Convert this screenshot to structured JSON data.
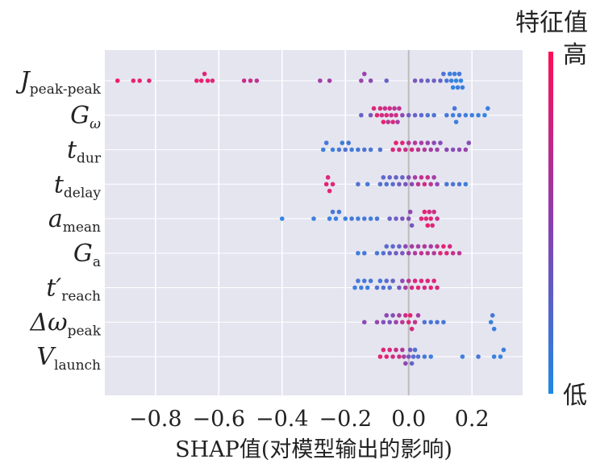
{
  "chart_data": {
    "type": "scatter",
    "subtype": "beeswarm",
    "xlabel": "SHAP值(对模型输出的影响)",
    "x_ticks": [
      -0.8,
      -0.6,
      -0.4,
      -0.2,
      0.0,
      0.2
    ],
    "x_tick_labels": [
      "−0.8",
      "−0.6",
      "−0.4",
      "−0.2",
      "0.0",
      "0.2"
    ],
    "xlim": [
      -0.96,
      0.36
    ],
    "grid": true,
    "colorbar": {
      "title": "特征值",
      "high_label": "高",
      "low_label": "低",
      "high_color": "#ff0d57",
      "low_color": "#1e88e5"
    },
    "features": [
      {
        "label": {
          "base": "J",
          "sub": "peak-peak"
        },
        "points": [
          {
            "x": -0.92,
            "v": 0.95
          },
          {
            "x": -0.87,
            "v": 0.9
          },
          {
            "x": -0.85,
            "v": 0.9
          },
          {
            "x": -0.82,
            "v": 0.85
          },
          {
            "x": -0.67,
            "v": 0.9
          },
          {
            "x": -0.655,
            "v": 0.9
          },
          {
            "x": -0.645,
            "v": 0.85
          },
          {
            "x": -0.635,
            "v": 0.9
          },
          {
            "x": -0.62,
            "v": 0.85
          },
          {
            "x": -0.52,
            "v": 0.75
          },
          {
            "x": -0.5,
            "v": 0.75
          },
          {
            "x": -0.48,
            "v": 0.7
          },
          {
            "x": -0.28,
            "v": 0.6
          },
          {
            "x": -0.25,
            "v": 0.6
          },
          {
            "x": -0.15,
            "v": 0.55
          },
          {
            "x": -0.14,
            "v": 0.55
          },
          {
            "x": -0.12,
            "v": 0.5
          },
          {
            "x": -0.07,
            "v": 0.3
          },
          {
            "x": 0.02,
            "v": 0.4
          },
          {
            "x": 0.04,
            "v": 0.35
          },
          {
            "x": 0.06,
            "v": 0.3
          },
          {
            "x": 0.08,
            "v": 0.35
          },
          {
            "x": 0.1,
            "v": 0.3
          },
          {
            "x": 0.11,
            "v": 0.2
          },
          {
            "x": 0.12,
            "v": 0.15
          },
          {
            "x": 0.13,
            "v": 0.1
          },
          {
            "x": 0.135,
            "v": 0.1
          },
          {
            "x": 0.14,
            "v": 0.05
          },
          {
            "x": 0.145,
            "v": 0.1
          },
          {
            "x": 0.15,
            "v": 0.05
          },
          {
            "x": 0.155,
            "v": 0.1
          },
          {
            "x": 0.16,
            "v": 0.15
          },
          {
            "x": 0.165,
            "v": 0.05
          },
          {
            "x": 0.17,
            "v": 0.1
          }
        ]
      },
      {
        "label": {
          "base": "G",
          "sub": "ω"
        },
        "points": [
          {
            "x": -0.15,
            "v": 0.3
          },
          {
            "x": -0.12,
            "v": 0.4
          },
          {
            "x": -0.11,
            "v": 0.85
          },
          {
            "x": -0.1,
            "v": 0.9
          },
          {
            "x": -0.09,
            "v": 0.85
          },
          {
            "x": -0.085,
            "v": 0.8
          },
          {
            "x": -0.08,
            "v": 0.9
          },
          {
            "x": -0.075,
            "v": 0.75
          },
          {
            "x": -0.07,
            "v": 0.85
          },
          {
            "x": -0.065,
            "v": 0.7
          },
          {
            "x": -0.06,
            "v": 0.8
          },
          {
            "x": -0.055,
            "v": 0.75
          },
          {
            "x": -0.05,
            "v": 0.85
          },
          {
            "x": -0.045,
            "v": 0.7
          },
          {
            "x": -0.04,
            "v": 0.8
          },
          {
            "x": -0.035,
            "v": 0.6
          },
          {
            "x": -0.03,
            "v": 0.7
          },
          {
            "x": -0.02,
            "v": 0.5
          },
          {
            "x": 0.0,
            "v": 0.35
          },
          {
            "x": 0.02,
            "v": 0.3
          },
          {
            "x": 0.04,
            "v": 0.25
          },
          {
            "x": 0.06,
            "v": 0.2
          },
          {
            "x": 0.08,
            "v": 0.2
          },
          {
            "x": 0.12,
            "v": 0.15
          },
          {
            "x": 0.14,
            "v": 0.1
          },
          {
            "x": 0.145,
            "v": 0.15
          },
          {
            "x": 0.15,
            "v": 0.1
          },
          {
            "x": 0.16,
            "v": 0.15
          },
          {
            "x": 0.18,
            "v": 0.1
          },
          {
            "x": 0.2,
            "v": 0.1
          },
          {
            "x": 0.22,
            "v": 0.1
          },
          {
            "x": 0.24,
            "v": 0.05
          },
          {
            "x": 0.25,
            "v": 0.1
          }
        ]
      },
      {
        "label": {
          "base": "t",
          "sub": "dur"
        },
        "points": [
          {
            "x": -0.27,
            "v": 0.1
          },
          {
            "x": -0.26,
            "v": 0.15
          },
          {
            "x": -0.24,
            "v": 0.1
          },
          {
            "x": -0.22,
            "v": 0.15
          },
          {
            "x": -0.21,
            "v": 0.1
          },
          {
            "x": -0.2,
            "v": 0.2
          },
          {
            "x": -0.19,
            "v": 0.15
          },
          {
            "x": -0.18,
            "v": 0.1
          },
          {
            "x": -0.16,
            "v": 0.15
          },
          {
            "x": -0.14,
            "v": 0.2
          },
          {
            "x": -0.12,
            "v": 0.15
          },
          {
            "x": -0.09,
            "v": 0.2
          },
          {
            "x": -0.05,
            "v": 0.85
          },
          {
            "x": -0.04,
            "v": 0.9
          },
          {
            "x": -0.03,
            "v": 0.8
          },
          {
            "x": -0.02,
            "v": 0.85
          },
          {
            "x": -0.01,
            "v": 0.75
          },
          {
            "x": 0.0,
            "v": 0.7
          },
          {
            "x": 0.01,
            "v": 0.8
          },
          {
            "x": 0.02,
            "v": 0.65
          },
          {
            "x": 0.03,
            "v": 0.7
          },
          {
            "x": 0.04,
            "v": 0.6
          },
          {
            "x": 0.05,
            "v": 0.65
          },
          {
            "x": 0.06,
            "v": 0.55
          },
          {
            "x": 0.07,
            "v": 0.6
          },
          {
            "x": 0.08,
            "v": 0.5
          },
          {
            "x": 0.09,
            "v": 0.55
          },
          {
            "x": 0.1,
            "v": 0.45
          },
          {
            "x": 0.12,
            "v": 0.5
          },
          {
            "x": 0.14,
            "v": 0.45
          },
          {
            "x": 0.16,
            "v": 0.5
          },
          {
            "x": 0.18,
            "v": 0.55
          },
          {
            "x": 0.19,
            "v": 0.45
          }
        ]
      },
      {
        "label": {
          "base": "t",
          "sub": "delay"
        },
        "points": [
          {
            "x": -0.26,
            "v": 0.9
          },
          {
            "x": -0.255,
            "v": 0.85
          },
          {
            "x": -0.25,
            "v": 0.9
          },
          {
            "x": -0.24,
            "v": 0.85
          },
          {
            "x": -0.16,
            "v": 0.2
          },
          {
            "x": -0.13,
            "v": 0.15
          },
          {
            "x": -0.09,
            "v": 0.2
          },
          {
            "x": -0.08,
            "v": 0.25
          },
          {
            "x": -0.07,
            "v": 0.2
          },
          {
            "x": -0.06,
            "v": 0.3
          },
          {
            "x": -0.05,
            "v": 0.25
          },
          {
            "x": -0.04,
            "v": 0.3
          },
          {
            "x": -0.03,
            "v": 0.35
          },
          {
            "x": -0.02,
            "v": 0.3
          },
          {
            "x": -0.01,
            "v": 0.4
          },
          {
            "x": 0.0,
            "v": 0.45
          },
          {
            "x": 0.01,
            "v": 0.5
          },
          {
            "x": 0.02,
            "v": 0.6
          },
          {
            "x": 0.03,
            "v": 0.7
          },
          {
            "x": 0.04,
            "v": 0.75
          },
          {
            "x": 0.05,
            "v": 0.8
          },
          {
            "x": 0.06,
            "v": 0.75
          },
          {
            "x": 0.07,
            "v": 0.7
          },
          {
            "x": 0.08,
            "v": 0.6
          },
          {
            "x": 0.09,
            "v": 0.5
          },
          {
            "x": 0.12,
            "v": 0.15
          },
          {
            "x": 0.14,
            "v": 0.2
          },
          {
            "x": 0.16,
            "v": 0.15
          },
          {
            "x": 0.18,
            "v": 0.1
          }
        ]
      },
      {
        "label": {
          "base": "a",
          "sub": "mean"
        },
        "points": [
          {
            "x": -0.4,
            "v": 0.05
          },
          {
            "x": -0.3,
            "v": 0.1
          },
          {
            "x": -0.25,
            "v": 0.1
          },
          {
            "x": -0.24,
            "v": 0.15
          },
          {
            "x": -0.23,
            "v": 0.1
          },
          {
            "x": -0.22,
            "v": 0.15
          },
          {
            "x": -0.2,
            "v": 0.1
          },
          {
            "x": -0.18,
            "v": 0.15
          },
          {
            "x": -0.16,
            "v": 0.1
          },
          {
            "x": -0.14,
            "v": 0.15
          },
          {
            "x": -0.12,
            "v": 0.1
          },
          {
            "x": -0.1,
            "v": 0.15
          },
          {
            "x": -0.06,
            "v": 0.3
          },
          {
            "x": -0.04,
            "v": 0.35
          },
          {
            "x": -0.02,
            "v": 0.4
          },
          {
            "x": 0.0,
            "v": 0.45
          },
          {
            "x": 0.005,
            "v": 0.5
          },
          {
            "x": 0.01,
            "v": 0.4
          },
          {
            "x": 0.04,
            "v": 0.85
          },
          {
            "x": 0.05,
            "v": 0.9
          },
          {
            "x": 0.055,
            "v": 0.85
          },
          {
            "x": 0.06,
            "v": 0.9
          },
          {
            "x": 0.065,
            "v": 0.8
          },
          {
            "x": 0.07,
            "v": 0.9
          },
          {
            "x": 0.075,
            "v": 0.85
          },
          {
            "x": 0.08,
            "v": 0.8
          },
          {
            "x": 0.09,
            "v": 0.75
          }
        ]
      },
      {
        "label": {
          "base": "G",
          "sub": "a"
        },
        "points": [
          {
            "x": -0.16,
            "v": 0.1
          },
          {
            "x": -0.14,
            "v": 0.15
          },
          {
            "x": -0.1,
            "v": 0.15
          },
          {
            "x": -0.08,
            "v": 0.2
          },
          {
            "x": -0.07,
            "v": 0.25
          },
          {
            "x": -0.06,
            "v": 0.3
          },
          {
            "x": -0.05,
            "v": 0.25
          },
          {
            "x": -0.04,
            "v": 0.35
          },
          {
            "x": -0.03,
            "v": 0.3
          },
          {
            "x": -0.02,
            "v": 0.4
          },
          {
            "x": -0.01,
            "v": 0.5
          },
          {
            "x": 0.0,
            "v": 0.55
          },
          {
            "x": 0.01,
            "v": 0.6
          },
          {
            "x": 0.02,
            "v": 0.65
          },
          {
            "x": 0.03,
            "v": 0.6
          },
          {
            "x": 0.04,
            "v": 0.7
          },
          {
            "x": 0.05,
            "v": 0.65
          },
          {
            "x": 0.06,
            "v": 0.7
          },
          {
            "x": 0.07,
            "v": 0.6
          },
          {
            "x": 0.08,
            "v": 0.65
          },
          {
            "x": 0.09,
            "v": 0.7
          },
          {
            "x": 0.1,
            "v": 0.85
          },
          {
            "x": 0.11,
            "v": 0.9
          },
          {
            "x": 0.12,
            "v": 0.85
          },
          {
            "x": 0.13,
            "v": 0.8
          },
          {
            "x": 0.14,
            "v": 0.75
          },
          {
            "x": 0.16,
            "v": 0.7
          }
        ]
      },
      {
        "label": {
          "base": "t′",
          "sub": "reach"
        },
        "points": [
          {
            "x": -0.17,
            "v": 0.1
          },
          {
            "x": -0.16,
            "v": 0.15
          },
          {
            "x": -0.15,
            "v": 0.1
          },
          {
            "x": -0.14,
            "v": 0.15
          },
          {
            "x": -0.13,
            "v": 0.1
          },
          {
            "x": -0.12,
            "v": 0.15
          },
          {
            "x": -0.1,
            "v": 0.2
          },
          {
            "x": -0.09,
            "v": 0.15
          },
          {
            "x": -0.08,
            "v": 0.2
          },
          {
            "x": -0.07,
            "v": 0.25
          },
          {
            "x": -0.06,
            "v": 0.2
          },
          {
            "x": -0.05,
            "v": 0.3
          },
          {
            "x": -0.03,
            "v": 0.35
          },
          {
            "x": -0.02,
            "v": 0.5
          },
          {
            "x": -0.01,
            "v": 0.6
          },
          {
            "x": 0.0,
            "v": 0.7
          },
          {
            "x": 0.01,
            "v": 0.8
          },
          {
            "x": 0.02,
            "v": 0.85
          },
          {
            "x": 0.03,
            "v": 0.9
          },
          {
            "x": 0.04,
            "v": 0.85
          },
          {
            "x": 0.05,
            "v": 0.8
          },
          {
            "x": 0.06,
            "v": 0.85
          },
          {
            "x": 0.07,
            "v": 0.9
          },
          {
            "x": 0.08,
            "v": 0.85
          },
          {
            "x": 0.09,
            "v": 0.8
          }
        ]
      },
      {
        "label": {
          "base": "Δω",
          "sub": "peak"
        },
        "points": [
          {
            "x": -0.14,
            "v": 0.5
          },
          {
            "x": -0.1,
            "v": 0.55
          },
          {
            "x": -0.08,
            "v": 0.45
          },
          {
            "x": -0.07,
            "v": 0.5
          },
          {
            "x": -0.06,
            "v": 0.4
          },
          {
            "x": -0.05,
            "v": 0.45
          },
          {
            "x": -0.04,
            "v": 0.55
          },
          {
            "x": -0.03,
            "v": 0.6
          },
          {
            "x": -0.02,
            "v": 0.7
          },
          {
            "x": -0.01,
            "v": 0.8
          },
          {
            "x": 0.0,
            "v": 0.85
          },
          {
            "x": 0.005,
            "v": 0.9
          },
          {
            "x": 0.01,
            "v": 0.8
          },
          {
            "x": 0.02,
            "v": 0.7
          },
          {
            "x": 0.03,
            "v": 0.6
          },
          {
            "x": 0.05,
            "v": 0.2
          },
          {
            "x": 0.07,
            "v": 0.15
          },
          {
            "x": 0.09,
            "v": 0.2
          },
          {
            "x": 0.11,
            "v": 0.15
          },
          {
            "x": 0.26,
            "v": 0.1
          },
          {
            "x": 0.265,
            "v": 0.15
          },
          {
            "x": 0.27,
            "v": 0.1
          }
        ]
      },
      {
        "label": {
          "base": "V",
          "sub": "launch"
        },
        "points": [
          {
            "x": -0.09,
            "v": 0.9
          },
          {
            "x": -0.08,
            "v": 0.85
          },
          {
            "x": -0.07,
            "v": 0.9
          },
          {
            "x": -0.06,
            "v": 0.85
          },
          {
            "x": -0.05,
            "v": 0.8
          },
          {
            "x": -0.04,
            "v": 0.75
          },
          {
            "x": -0.03,
            "v": 0.8
          },
          {
            "x": -0.02,
            "v": 0.65
          },
          {
            "x": -0.015,
            "v": 0.6
          },
          {
            "x": -0.01,
            "v": 0.5
          },
          {
            "x": 0.0,
            "v": 0.4
          },
          {
            "x": 0.005,
            "v": 0.35
          },
          {
            "x": 0.01,
            "v": 0.3
          },
          {
            "x": 0.015,
            "v": 0.25
          },
          {
            "x": 0.02,
            "v": 0.2
          },
          {
            "x": 0.03,
            "v": 0.2
          },
          {
            "x": 0.05,
            "v": 0.15
          },
          {
            "x": 0.07,
            "v": 0.1
          },
          {
            "x": 0.17,
            "v": 0.1
          },
          {
            "x": 0.22,
            "v": 0.15
          },
          {
            "x": 0.27,
            "v": 0.1
          },
          {
            "x": 0.29,
            "v": 0.05
          },
          {
            "x": 0.3,
            "v": 0.1
          }
        ]
      }
    ]
  }
}
